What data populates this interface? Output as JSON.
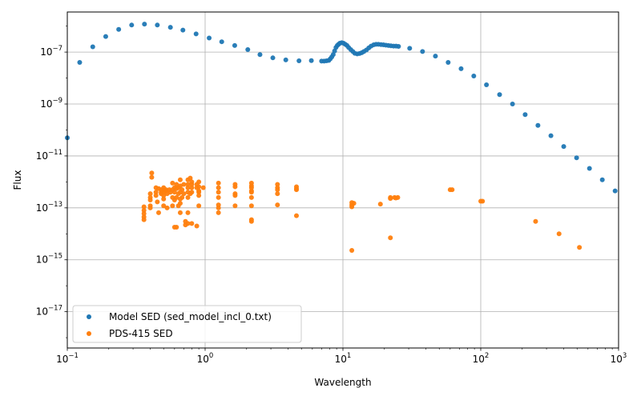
{
  "chart_data": {
    "type": "scatter",
    "xlabel": "Wavelength",
    "ylabel": "Flux",
    "xscale": "log",
    "yscale": "log",
    "xlim": [
      0.1,
      1000
    ],
    "ylim": [
      4e-19,
      3.5e-06
    ],
    "grid": true,
    "legend_position": "lower-left",
    "x_ticks": [
      {
        "value": 0.1,
        "base": "10",
        "exp": "−1"
      },
      {
        "value": 1,
        "base": "10",
        "exp": "0"
      },
      {
        "value": 10,
        "base": "10",
        "exp": "1"
      },
      {
        "value": 100,
        "base": "10",
        "exp": "2"
      },
      {
        "value": 1000,
        "base": "10",
        "exp": "3"
      }
    ],
    "y_ticks": [
      {
        "value": 1e-17,
        "base": "10",
        "exp": "−17"
      },
      {
        "value": 1e-15,
        "base": "10",
        "exp": "−15"
      },
      {
        "value": 1e-13,
        "base": "10",
        "exp": "−13"
      },
      {
        "value": 1e-11,
        "base": "10",
        "exp": "−11"
      },
      {
        "value": 1e-09,
        "base": "10",
        "exp": "−9"
      },
      {
        "value": 1e-07,
        "base": "10",
        "exp": "−7"
      }
    ],
    "series": [
      {
        "name": "Model SED (sed_model_incl_0.txt)",
        "color": "#1f77b4",
        "points": [
          [
            0.1,
            5e-11
          ],
          [
            0.123,
            4e-08
          ],
          [
            0.153,
            1.6e-07
          ],
          [
            0.19,
            4e-07
          ],
          [
            0.236,
            7.5e-07
          ],
          [
            0.293,
            1.1e-06
          ],
          [
            0.363,
            1.2e-06
          ],
          [
            0.45,
            1.1e-06
          ],
          [
            0.56,
            9e-07
          ],
          [
            0.69,
            7e-07
          ],
          [
            0.86,
            5e-07
          ],
          [
            1.07,
            3.5e-07
          ],
          [
            1.32,
            2.5e-07
          ],
          [
            1.64,
            1.8e-07
          ],
          [
            2.04,
            1.25e-07
          ],
          [
            2.5,
            8e-08
          ],
          [
            3.1,
            6e-08
          ],
          [
            3.85,
            5e-08
          ],
          [
            4.8,
            4.6e-08
          ],
          [
            5.9,
            4.7e-08
          ],
          [
            7.0,
            4.5e-08
          ],
          [
            7.3,
            4.5e-08
          ],
          [
            7.6,
            4.6e-08
          ],
          [
            7.9,
            4.8e-08
          ],
          [
            8.1,
            5.5e-08
          ],
          [
            8.3,
            6.5e-08
          ],
          [
            8.5,
            8e-08
          ],
          [
            8.7,
            1.1e-07
          ],
          [
            8.9,
            1.5e-07
          ],
          [
            9.1,
            1.8e-07
          ],
          [
            9.3,
            2e-07
          ],
          [
            9.5,
            2.2e-07
          ],
          [
            9.8,
            2.3e-07
          ],
          [
            10.1,
            2.2e-07
          ],
          [
            10.4,
            2e-07
          ],
          [
            10.7,
            1.8e-07
          ],
          [
            11.0,
            1.5e-07
          ],
          [
            11.4,
            1.25e-07
          ],
          [
            11.8,
            1.05e-07
          ],
          [
            12.2,
            9e-08
          ],
          [
            12.7,
            8.5e-08
          ],
          [
            13.2,
            8.8e-08
          ],
          [
            13.7,
            9.5e-08
          ],
          [
            14.2,
            1.05e-07
          ],
          [
            14.8,
            1.2e-07
          ],
          [
            15.4,
            1.45e-07
          ],
          [
            16.0,
            1.7e-07
          ],
          [
            16.7,
            1.9e-07
          ],
          [
            17.4,
            2e-07
          ],
          [
            18.1,
            2e-07
          ],
          [
            18.9,
            1.95e-07
          ],
          [
            19.7,
            1.9e-07
          ],
          [
            20.5,
            1.85e-07
          ],
          [
            21.4,
            1.8e-07
          ],
          [
            22.3,
            1.75e-07
          ],
          [
            23.3,
            1.7e-07
          ],
          [
            24.3,
            1.7e-07
          ],
          [
            25.3,
            1.65e-07
          ],
          [
            30.5,
            1.4e-07
          ],
          [
            37.8,
            1.05e-07
          ],
          [
            46.9,
            7e-08
          ],
          [
            58,
            4e-08
          ],
          [
            72,
            2.3e-08
          ],
          [
            89,
            1.2e-08
          ],
          [
            110,
            5.5e-09
          ],
          [
            137,
            2.3e-09
          ],
          [
            170,
            1e-09
          ],
          [
            210,
            3.9e-10
          ],
          [
            260,
            1.5e-10
          ],
          [
            323,
            6e-11
          ],
          [
            400,
            2.3e-11
          ],
          [
            496,
            8.5e-12
          ],
          [
            615,
            3.3e-12
          ],
          [
            762,
            1.2e-12
          ],
          [
            944,
            4.5e-13
          ]
        ]
      },
      {
        "name": "PDS-415 SED",
        "color": "#ff7f0e",
        "points": [
          [
            0.36,
            1.1e-13
          ],
          [
            0.36,
            8e-14
          ],
          [
            0.36,
            6e-14
          ],
          [
            0.36,
            4.5e-14
          ],
          [
            0.36,
            3.5e-14
          ],
          [
            0.4,
            3.5e-13
          ],
          [
            0.4,
            2.5e-13
          ],
          [
            0.4,
            2e-13
          ],
          [
            0.4,
            1.2e-13
          ],
          [
            0.4,
            1e-13
          ],
          [
            0.41,
            2.2e-12
          ],
          [
            0.41,
            1.5e-12
          ],
          [
            0.44,
            6e-13
          ],
          [
            0.44,
            4e-13
          ],
          [
            0.44,
            3e-13
          ],
          [
            0.45,
            1.7e-13
          ],
          [
            0.46,
            5.5e-13
          ],
          [
            0.46,
            6.5e-14
          ],
          [
            0.48,
            5e-13
          ],
          [
            0.48,
            4e-13
          ],
          [
            0.48,
            3.5e-13
          ],
          [
            0.5,
            6e-13
          ],
          [
            0.5,
            5e-13
          ],
          [
            0.5,
            4e-13
          ],
          [
            0.5,
            3e-13
          ],
          [
            0.5,
            2.2e-13
          ],
          [
            0.5,
            1.2e-13
          ],
          [
            0.52,
            5e-13
          ],
          [
            0.52,
            4.5e-13
          ],
          [
            0.53,
            3.5e-13
          ],
          [
            0.53,
            1e-13
          ],
          [
            0.55,
            5e-13
          ],
          [
            0.56,
            4e-13
          ],
          [
            0.58,
            9e-13
          ],
          [
            0.58,
            5e-13
          ],
          [
            0.58,
            2.5e-13
          ],
          [
            0.58,
            1.2e-13
          ],
          [
            0.6,
            6e-13
          ],
          [
            0.6,
            4e-13
          ],
          [
            0.6,
            2e-13
          ],
          [
            0.6,
            1.8e-14
          ],
          [
            0.62,
            8e-13
          ],
          [
            0.62,
            5.5e-13
          ],
          [
            0.62,
            2.5e-13
          ],
          [
            0.62,
            1.8e-14
          ],
          [
            0.64,
            6e-13
          ],
          [
            0.64,
            3.5e-13
          ],
          [
            0.64,
            1.2e-13
          ],
          [
            0.66,
            1.2e-12
          ],
          [
            0.66,
            7e-13
          ],
          [
            0.66,
            4e-13
          ],
          [
            0.66,
            2.2e-13
          ],
          [
            0.66,
            1.5e-13
          ],
          [
            0.66,
            6.5e-14
          ],
          [
            0.68,
            5e-13
          ],
          [
            0.68,
            2.5e-13
          ],
          [
            0.7,
            8e-13
          ],
          [
            0.7,
            3.5e-13
          ],
          [
            0.72,
            3e-14
          ],
          [
            0.72,
            2.2e-14
          ],
          [
            0.75,
            1.2e-12
          ],
          [
            0.75,
            8e-13
          ],
          [
            0.75,
            6e-13
          ],
          [
            0.75,
            4e-13
          ],
          [
            0.75,
            2.5e-13
          ],
          [
            0.75,
            6.5e-14
          ],
          [
            0.75,
            2.5e-14
          ],
          [
            0.78,
            1.4e-12
          ],
          [
            0.78,
            3.5e-13
          ],
          [
            0.8,
            1e-12
          ],
          [
            0.8,
            8e-13
          ],
          [
            0.8,
            6e-13
          ],
          [
            0.8,
            4e-13
          ],
          [
            0.8,
            2.5e-14
          ],
          [
            0.87,
            8e-13
          ],
          [
            0.87,
            6e-13
          ],
          [
            0.87,
            2e-14
          ],
          [
            0.9,
            1e-12
          ],
          [
            0.9,
            6.5e-13
          ],
          [
            0.9,
            4.5e-13
          ],
          [
            0.9,
            4e-13
          ],
          [
            0.9,
            3e-13
          ],
          [
            0.9,
            1.2e-13
          ],
          [
            0.97,
            6e-13
          ],
          [
            1.25,
            9e-13
          ],
          [
            1.25,
            6e-13
          ],
          [
            1.25,
            4e-13
          ],
          [
            1.25,
            2.5e-13
          ],
          [
            1.25,
            1.3e-13
          ],
          [
            1.25,
            1e-13
          ],
          [
            1.25,
            6.5e-14
          ],
          [
            1.65,
            8e-13
          ],
          [
            1.65,
            6.5e-13
          ],
          [
            1.65,
            3.5e-13
          ],
          [
            1.65,
            3e-13
          ],
          [
            1.65,
            1.2e-13
          ],
          [
            2.17,
            9e-13
          ],
          [
            2.17,
            7e-13
          ],
          [
            2.17,
            6e-13
          ],
          [
            2.17,
            4.5e-13
          ],
          [
            2.17,
            4e-13
          ],
          [
            2.17,
            2.5e-13
          ],
          [
            2.17,
            1.2e-13
          ],
          [
            2.17,
            3.5e-14
          ],
          [
            2.17,
            3e-14
          ],
          [
            3.35,
            8e-13
          ],
          [
            3.35,
            6e-13
          ],
          [
            3.35,
            5e-13
          ],
          [
            3.35,
            3.5e-13
          ],
          [
            3.35,
            1.3e-13
          ],
          [
            4.6,
            6.5e-13
          ],
          [
            4.6,
            5.5e-13
          ],
          [
            4.6,
            5e-13
          ],
          [
            4.6,
            5e-14
          ],
          [
            11.6,
            1.6e-13
          ],
          [
            11.6,
            1.3e-13
          ],
          [
            11.6,
            1.1e-13
          ],
          [
            11.6,
            2.3e-15
          ],
          [
            12.0,
            1.5e-13
          ],
          [
            18.7,
            1.4e-13
          ],
          [
            22.1,
            2.5e-13
          ],
          [
            22.1,
            2.3e-13
          ],
          [
            22.1,
            7e-15
          ],
          [
            23.7,
            2.5e-13
          ],
          [
            24.2,
            2.4e-13
          ],
          [
            25.0,
            2.5e-13
          ],
          [
            60,
            5e-13
          ],
          [
            62,
            5e-13
          ],
          [
            100,
            1.8e-13
          ],
          [
            103,
            1.8e-13
          ],
          [
            250,
            3e-14
          ],
          [
            370,
            1e-14
          ],
          [
            520,
            3e-15
          ]
        ]
      }
    ]
  }
}
